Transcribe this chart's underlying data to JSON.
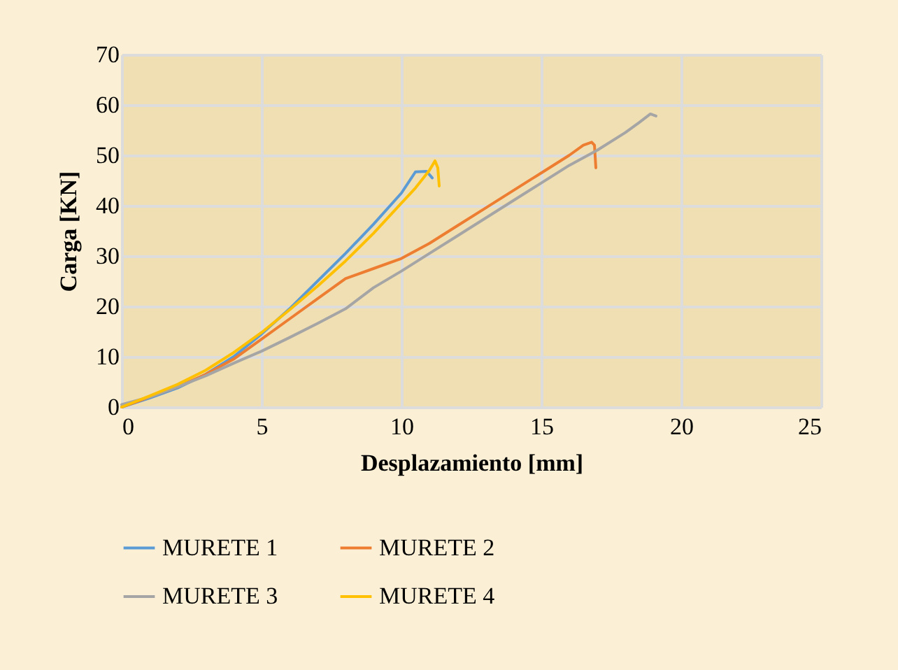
{
  "chart_data": {
    "type": "line",
    "xlabel": "Desplazamiento [mm]",
    "ylabel": "Carga [KN]",
    "xlim": [
      0,
      25
    ],
    "ylim": [
      0,
      70
    ],
    "xticks": [
      0,
      5,
      10,
      15,
      20,
      25
    ],
    "yticks": [
      0,
      10,
      20,
      30,
      40,
      50,
      60,
      70
    ],
    "grid": true,
    "legend": "bottom",
    "series": [
      {
        "name": "MURETE 1",
        "color": "#5b9bd5",
        "x": [
          0,
          1,
          2,
          3,
          4,
          5,
          6,
          7,
          8,
          9,
          10,
          10.5,
          10.9,
          11.1
        ],
        "values": [
          0,
          1.8,
          3.8,
          6.5,
          10,
          14.5,
          19.5,
          25,
          30.5,
          36.3,
          42.5,
          46.7,
          46.8,
          45.5
        ]
      },
      {
        "name": "MURETE 2",
        "color": "#ed7d31",
        "x": [
          0,
          1,
          2,
          3,
          4,
          5,
          6,
          7,
          8,
          9,
          10,
          11,
          12,
          13,
          14,
          15,
          16,
          16.5,
          16.8,
          16.9,
          16.95
        ],
        "values": [
          0,
          2,
          4,
          6.5,
          9.5,
          13.5,
          17.5,
          21.5,
          25.5,
          27.5,
          29.5,
          32.5,
          36,
          39.5,
          43,
          46.5,
          50,
          52,
          52.6,
          52,
          47.5
        ]
      },
      {
        "name": "MURETE 3",
        "color": "#a5a5a5",
        "x": [
          0,
          1,
          2,
          3,
          4,
          5,
          6,
          7,
          8,
          9,
          10,
          11,
          12,
          13,
          14,
          15,
          16,
          17,
          18,
          18.5,
          18.9,
          19.1
        ],
        "values": [
          0.5,
          2,
          4,
          6.2,
          8.7,
          11.1,
          13.8,
          16.6,
          19.5,
          23.7,
          27,
          30.5,
          34,
          37.5,
          41,
          44.5,
          48,
          51,
          54.5,
          56.5,
          58.2,
          57.8
        ]
      },
      {
        "name": "MURETE 4",
        "color": "#ffc000",
        "x": [
          0,
          1,
          2,
          3,
          4,
          5,
          6,
          7,
          8,
          9,
          10,
          10.5,
          11,
          11.2,
          11.3,
          11.35
        ],
        "values": [
          0,
          2.2,
          4.5,
          7.3,
          10.8,
          14.8,
          19.3,
          24,
          29,
          34.5,
          40.5,
          43.5,
          47,
          48.9,
          47.5,
          43.9
        ]
      }
    ]
  }
}
